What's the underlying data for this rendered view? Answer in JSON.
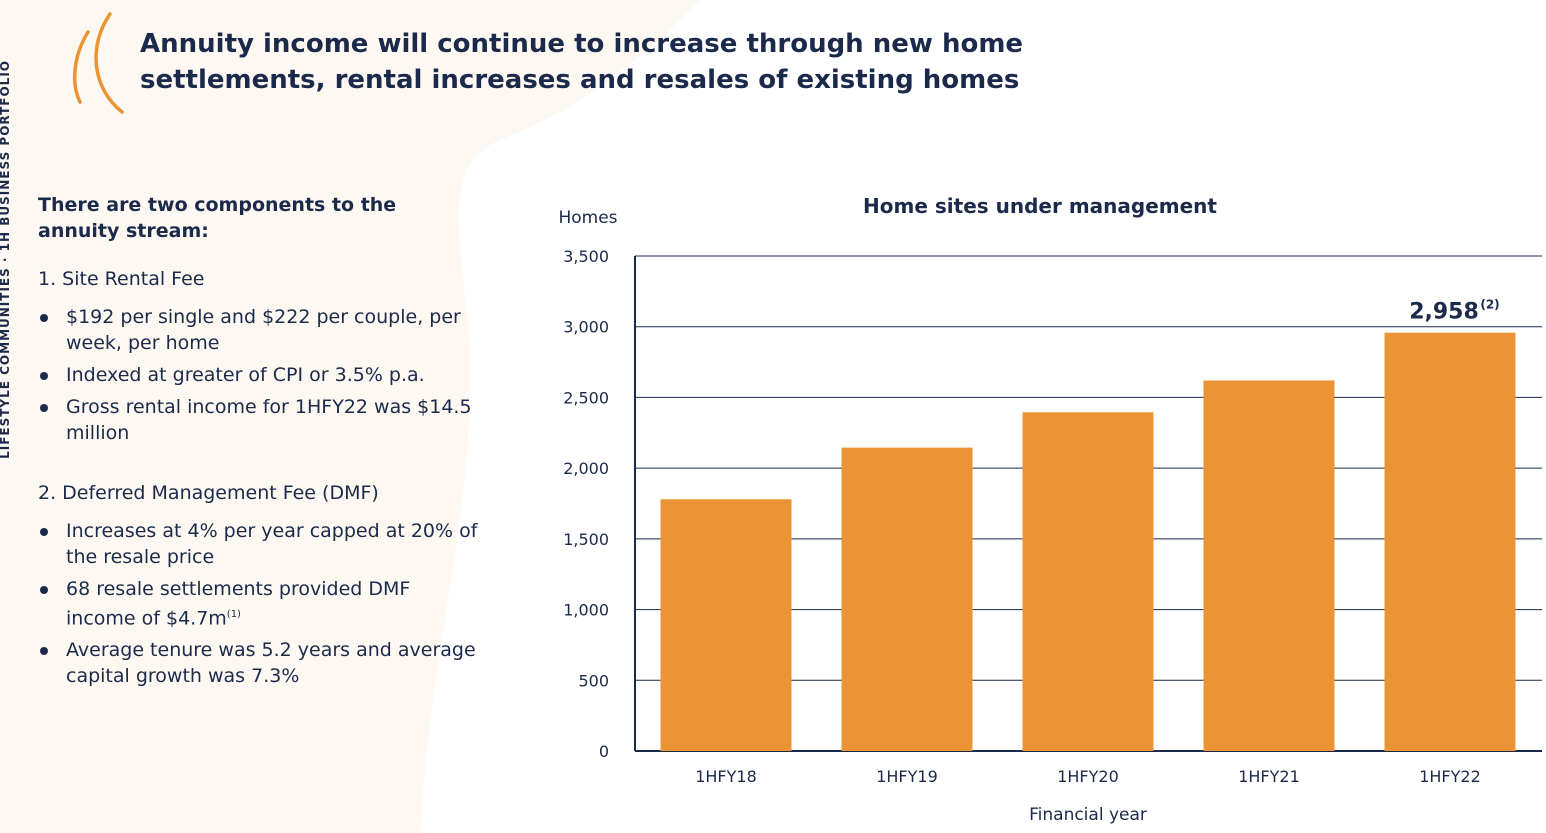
{
  "colors": {
    "accent": "#ea9436",
    "navy": "#1b2a4a",
    "background_shape": "#fdf8f2",
    "gridline": "#1b2a4a"
  },
  "icons": {
    "decoration": "double-arc-icon"
  },
  "side_label": "LIFESTYLE COMMUNITIES · 1H BUSINESS PORTFOLIO",
  "title": {
    "line1": "Annuity income will continue to increase through new home",
    "line2": "settlements, rental increases and resales of existing homes"
  },
  "left": {
    "intro": "There are two components to the annuity stream:",
    "section1": {
      "heading": "1. Site Rental Fee",
      "bullets": [
        "$192 per single and $222 per couple, per week, per home",
        "Indexed at greater of CPI or 3.5% p.a.",
        "Gross rental income for 1HFY22 was $14.5 million"
      ]
    },
    "section2": {
      "heading": "2. Deferred Management Fee (DMF)",
      "bullets": [
        "Increases at 4% per year capped at 20% of the resale price",
        "68 resale settlements provided DMF income of $4.7m",
        "Average tenure was 5.2 years and average capital growth was 7.3%"
      ],
      "bullet2_footnote": "(1)"
    }
  },
  "chart_data": {
    "type": "bar",
    "title": "Home sites under management",
    "ylabel": "Homes",
    "xlabel": "Financial year",
    "categories": [
      "1HFY18",
      "1HFY19",
      "1HFY20",
      "1HFY21",
      "1HFY22"
    ],
    "values": [
      1780,
      2145,
      2395,
      2620,
      2958
    ],
    "ylim": [
      0,
      3500
    ],
    "yticks": [
      0,
      500,
      1000,
      1500,
      2000,
      2500,
      3000,
      3500
    ],
    "ytick_labels": [
      "0",
      "500",
      "1,000",
      "1,500",
      "2,000",
      "2,500",
      "3,000",
      "3,500"
    ],
    "grid": true,
    "annotation": {
      "category": "1HFY22",
      "text": "2,958",
      "footnote": "(2)"
    },
    "bar_color": "#ea9436"
  }
}
